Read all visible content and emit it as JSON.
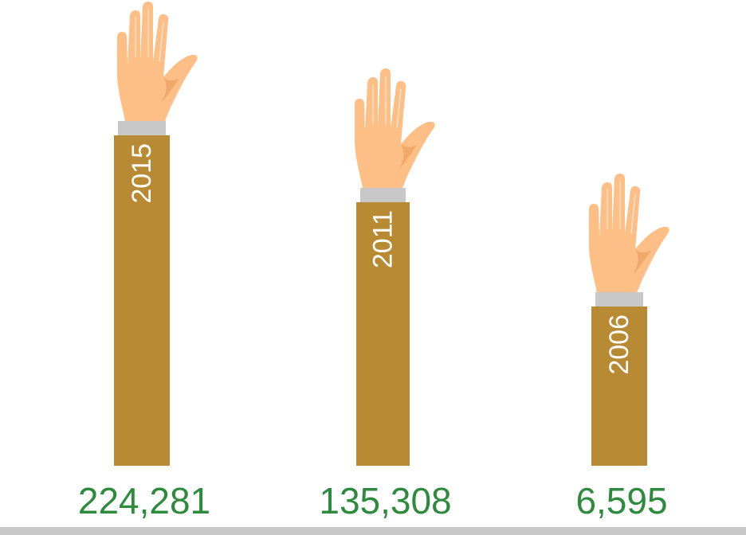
{
  "items": [
    {
      "year": "2015",
      "value": "224,281"
    },
    {
      "year": "2011",
      "value": "135,308"
    },
    {
      "year": "2006",
      "value": "6,595"
    }
  ]
}
